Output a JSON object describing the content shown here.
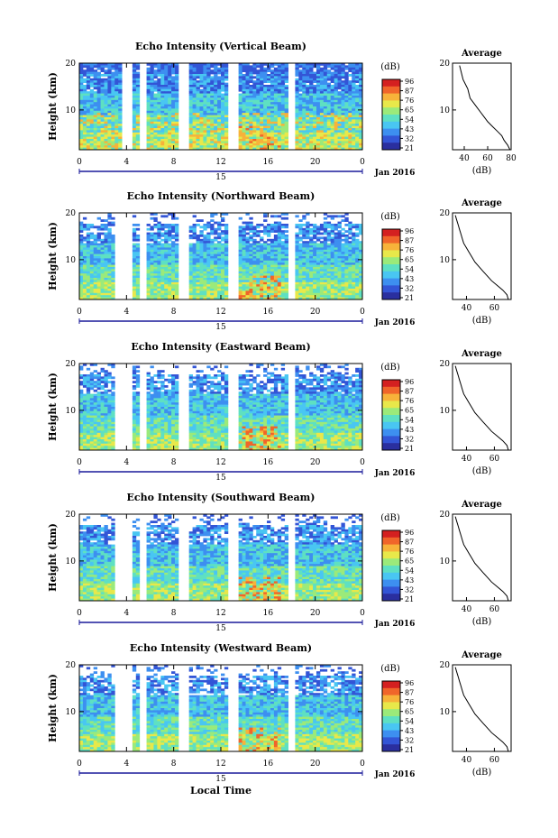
{
  "figure": {
    "xlabel": "Local Time",
    "date_label": "Jan 2016",
    "day_label": "15",
    "colorbar_unit": "(dB)",
    "colorbar_ticks": [
      "96",
      "87",
      "76",
      "65",
      "54",
      "43",
      "32",
      "21"
    ],
    "colorbar_colors": [
      "#2a2f9f",
      "#3355d6",
      "#3d8ff0",
      "#49c6f2",
      "#5ee0c2",
      "#9bea7a",
      "#e8e84a",
      "#f7b23a",
      "#f0652a",
      "#d42020"
    ],
    "beam_colors": {
      "background": "#ffffff",
      "high": "#2f47d8",
      "mid": "#3fa8ee",
      "low": "#f0e463",
      "peak": "#f3a54a"
    }
  },
  "chart_data": [
    {
      "type": "heatmap",
      "title": "Echo Intensity (Vertical Beam)",
      "ylabel": "Height (km)",
      "x_ticks": [
        "0",
        "4",
        "8",
        "12",
        "16",
        "20",
        "0"
      ],
      "y_ticks": [
        "20",
        "10"
      ],
      "xlim": [
        0,
        24
      ],
      "ylim": [
        1.5,
        20
      ],
      "avg_panel": {
        "title": "Average",
        "xlabel": "(dB)",
        "x_ticks": [
          "40",
          "60",
          "80"
        ],
        "xlim": [
          30,
          80
        ],
        "y_ticks": [
          "20",
          "10"
        ],
        "profile_heights": [
          1.5,
          2.5,
          3.5,
          4.5,
          5.5,
          6.5,
          7.5,
          8.5,
          9.5,
          10.5,
          11.5,
          12.5,
          13.5,
          14.5,
          15.5,
          16.5,
          17.5,
          18.5,
          19.5
        ],
        "profile_db": [
          79,
          77,
          74,
          72,
          68,
          64,
          60,
          57,
          54,
          51,
          48,
          45,
          44,
          43,
          41,
          39,
          38,
          37,
          36
        ]
      },
      "gaps": [
        [
          3.7,
          4.5
        ],
        [
          5.2,
          5.6
        ],
        [
          8.5,
          9.2
        ],
        [
          12.6,
          13.4
        ],
        [
          17.8,
          18.3
        ]
      ]
    },
    {
      "type": "heatmap",
      "title": "Echo Intensity (Northward Beam)",
      "ylabel": "Height (km)",
      "x_ticks": [
        "0",
        "4",
        "8",
        "12",
        "16",
        "20",
        "0"
      ],
      "y_ticks": [
        "20",
        "10"
      ],
      "xlim": [
        0,
        24
      ],
      "ylim": [
        1.5,
        20
      ],
      "avg_panel": {
        "title": "Average",
        "xlabel": "(dB)",
        "x_ticks": [
          "40",
          "60"
        ],
        "xlim": [
          30,
          72
        ],
        "y_ticks": [
          "20",
          "10"
        ],
        "profile_heights": [
          1.5,
          2.5,
          3.5,
          4.5,
          5.5,
          6.5,
          7.5,
          8.5,
          9.5,
          10.5,
          11.5,
          12.5,
          13.5,
          14.5,
          15.5,
          16.5,
          17.5,
          18.5,
          19.5
        ],
        "profile_db": [
          70,
          69,
          66,
          62,
          58,
          55,
          52,
          49,
          46,
          44,
          42,
          40,
          38,
          37,
          36,
          35,
          34,
          33,
          32
        ]
      },
      "gaps": [
        [
          3.1,
          4.5
        ],
        [
          5.2,
          5.6
        ],
        [
          8.5,
          9.2
        ],
        [
          12.6,
          13.4
        ],
        [
          17.8,
          18.3
        ]
      ]
    },
    {
      "type": "heatmap",
      "title": "Echo Intensity (Eastward Beam)",
      "ylabel": "Height (km)",
      "x_ticks": [
        "0",
        "4",
        "8",
        "12",
        "16",
        "20",
        "0"
      ],
      "y_ticks": [
        "20",
        "10"
      ],
      "xlim": [
        0,
        24
      ],
      "ylim": [
        1.5,
        20
      ],
      "avg_panel": {
        "title": "Average",
        "xlabel": "(dB)",
        "x_ticks": [
          "40",
          "60"
        ],
        "xlim": [
          30,
          72
        ],
        "y_ticks": [
          "20",
          "10"
        ],
        "profile_heights": [
          1.5,
          2.5,
          3.5,
          4.5,
          5.5,
          6.5,
          7.5,
          8.5,
          9.5,
          10.5,
          11.5,
          12.5,
          13.5,
          14.5,
          15.5,
          16.5,
          17.5,
          18.5,
          19.5
        ],
        "profile_db": [
          70,
          69,
          66,
          62,
          58,
          55,
          52,
          49,
          46,
          44,
          42,
          40,
          38,
          37,
          36,
          35,
          34,
          33,
          32
        ]
      },
      "gaps": [
        [
          3.1,
          4.5
        ],
        [
          5.2,
          5.6
        ],
        [
          8.5,
          9.2
        ],
        [
          12.6,
          13.4
        ],
        [
          17.8,
          18.3
        ]
      ]
    },
    {
      "type": "heatmap",
      "title": "Echo Intensity (Southward Beam)",
      "ylabel": "Height (km)",
      "x_ticks": [
        "0",
        "4",
        "8",
        "12",
        "16",
        "20",
        "0"
      ],
      "y_ticks": [
        "20",
        "10"
      ],
      "xlim": [
        0,
        24
      ],
      "ylim": [
        1.5,
        20
      ],
      "avg_panel": {
        "title": "Average",
        "xlabel": "(dB)",
        "x_ticks": [
          "40",
          "60"
        ],
        "xlim": [
          30,
          72
        ],
        "y_ticks": [
          "20",
          "10"
        ],
        "profile_heights": [
          1.5,
          2.5,
          3.5,
          4.5,
          5.5,
          6.5,
          7.5,
          8.5,
          9.5,
          10.5,
          11.5,
          12.5,
          13.5,
          14.5,
          15.5,
          16.5,
          17.5,
          18.5,
          19.5
        ],
        "profile_db": [
          70,
          69,
          66,
          62,
          58,
          55,
          52,
          49,
          46,
          44,
          42,
          40,
          38,
          37,
          36,
          35,
          34,
          33,
          32
        ]
      },
      "gaps": [
        [
          3.1,
          4.5
        ],
        [
          5.2,
          5.6
        ],
        [
          8.5,
          9.2
        ],
        [
          12.6,
          13.4
        ],
        [
          17.8,
          18.3
        ]
      ]
    },
    {
      "type": "heatmap",
      "title": "Echo Intensity (Westward Beam)",
      "ylabel": "Height (km)",
      "x_ticks": [
        "0",
        "4",
        "8",
        "12",
        "16",
        "20",
        "0"
      ],
      "y_ticks": [
        "20",
        "10"
      ],
      "xlim": [
        0,
        24
      ],
      "ylim": [
        1.5,
        20
      ],
      "avg_panel": {
        "title": "Average",
        "xlabel": "(dB)",
        "x_ticks": [
          "40",
          "60"
        ],
        "xlim": [
          30,
          72
        ],
        "y_ticks": [
          "20",
          "10"
        ],
        "profile_heights": [
          1.5,
          2.5,
          3.5,
          4.5,
          5.5,
          6.5,
          7.5,
          8.5,
          9.5,
          10.5,
          11.5,
          12.5,
          13.5,
          14.5,
          15.5,
          16.5,
          17.5,
          18.5,
          19.5
        ],
        "profile_db": [
          70,
          69,
          66,
          62,
          58,
          55,
          52,
          49,
          46,
          44,
          42,
          40,
          38,
          37,
          36,
          35,
          34,
          33,
          32
        ]
      },
      "gaps": [
        [
          3.1,
          4.5
        ],
        [
          5.2,
          5.6
        ],
        [
          8.5,
          9.2
        ],
        [
          12.6,
          13.4
        ],
        [
          17.8,
          18.3
        ]
      ]
    }
  ]
}
